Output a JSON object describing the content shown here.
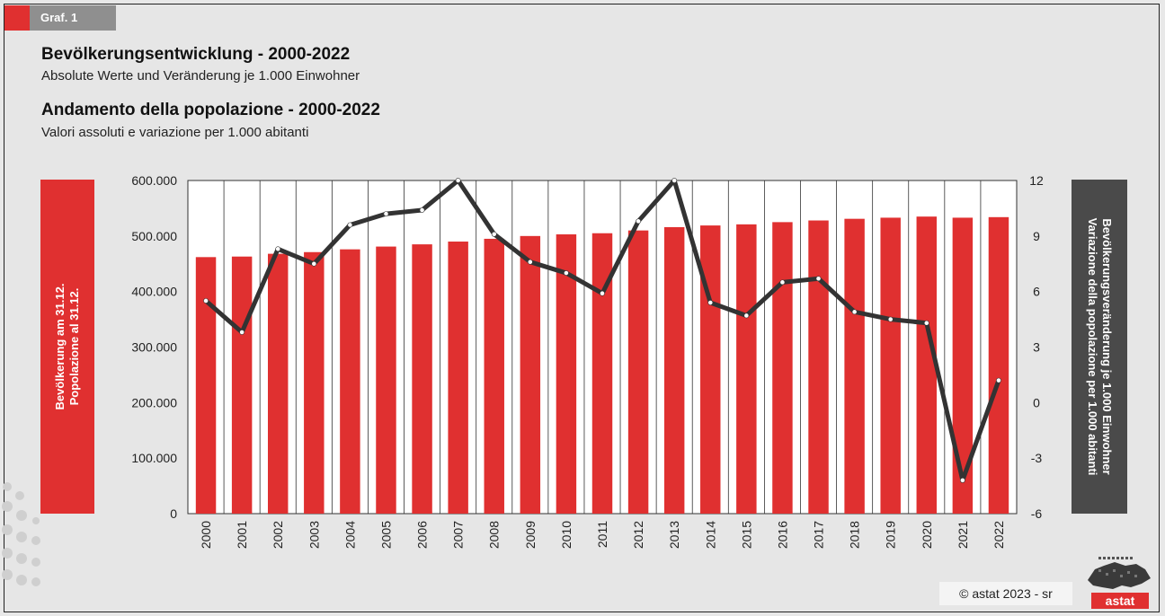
{
  "header": {
    "tag": "Graf. 1",
    "title_de": "Bevölkerungsentwicklung - 2000-2022",
    "subtitle_de": "Absolute Werte und Veränderung je 1.000 Einwohner",
    "title_it": "Andamento della popolazione - 2000-2022",
    "subtitle_it": "Valori assoluti e variazione per 1.000 abitanti"
  },
  "footer": {
    "copyright": "astat 2023 - sr",
    "copyright_symbol": "©",
    "logo_text": "astat"
  },
  "colors": {
    "bar": "#e03030",
    "line": "#333333",
    "marker": "#ffffff",
    "accent_grey": "#4a4a4a"
  },
  "chart_data": {
    "type": "bar+line",
    "categories": [
      "2000",
      "2001",
      "2002",
      "2003",
      "2004",
      "2005",
      "2006",
      "2007",
      "2008",
      "2009",
      "2010",
      "2011",
      "2012",
      "2013",
      "2014",
      "2015",
      "2016",
      "2017",
      "2018",
      "2019",
      "2020",
      "2021",
      "2022"
    ],
    "series": [
      {
        "name": "Bevölkerung am 31.12. / Popolazione al 31.12.",
        "type": "bar",
        "axis": "left",
        "values": [
          462000,
          463000,
          468000,
          471000,
          476000,
          481000,
          485000,
          490000,
          495000,
          500000,
          503000,
          505000,
          510000,
          516000,
          519000,
          521000,
          525000,
          528000,
          531000,
          533000,
          535000,
          533000,
          534000
        ]
      },
      {
        "name": "Bevölkerungsveränderung je 1.000 Einwohner / Variazione della popolazione per 1.000 abitanti",
        "type": "line",
        "axis": "right",
        "values": [
          5.5,
          3.8,
          8.3,
          7.5,
          9.6,
          10.2,
          10.4,
          12.0,
          9.1,
          7.6,
          7.0,
          5.9,
          9.8,
          12.0,
          5.4,
          4.7,
          6.5,
          6.7,
          4.9,
          4.5,
          4.3,
          -4.2,
          1.2
        ]
      }
    ],
    "y_left": {
      "label_de": "Bevölkerung am 31.12.",
      "label_it": "Popolazione al 31.12.",
      "ylim": [
        0,
        600000
      ],
      "ticks": [
        "0",
        "100.000",
        "200.000",
        "300.000",
        "400.000",
        "500.000",
        "600.000"
      ]
    },
    "y_right": {
      "label_de": "Bevölkerungsveränderung je 1.000 Einwohner",
      "label_it": "Variazione della popolazione per 1.000 abitanti",
      "ylim": [
        -6,
        12
      ],
      "ticks": [
        "-6",
        "-3",
        "0",
        "3",
        "6",
        "9",
        "12"
      ]
    },
    "grid": "vertical",
    "legend": "none"
  }
}
